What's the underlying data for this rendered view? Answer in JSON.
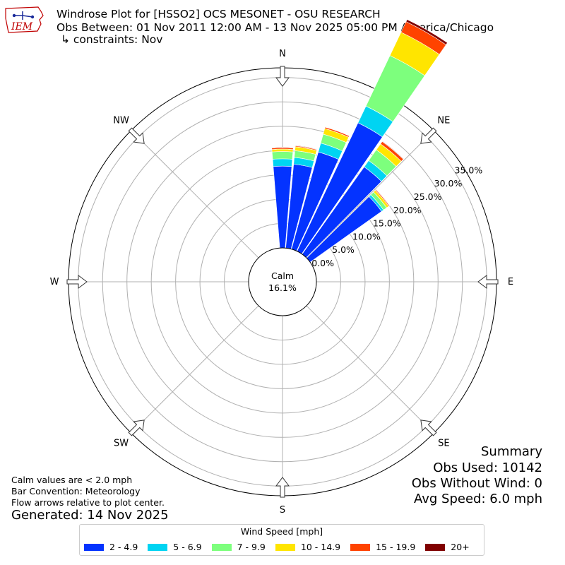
{
  "logo": {
    "text": "IEM",
    "icon": "iowa-state-outline-logo"
  },
  "header": {
    "title": "Windrose Plot for [HSSO2] OCS MESONET - OSU RESEARCH",
    "subtitle": "Obs Between: 01 Nov 2011 12:00 AM - 13 Nov 2025 05:00 PM America/Chicago",
    "constraints": "↳ constraints: Nov"
  },
  "calm": {
    "label": "Calm",
    "value": "16.1%"
  },
  "summary": {
    "title": "Summary",
    "obs_used": "Obs Used: 10142",
    "obs_without_wind": "Obs Without Wind: 0",
    "avg_speed": "Avg Speed: 6.0 mph"
  },
  "notes": {
    "calm_note": "Calm values are < 2.0 mph",
    "bar_convention": "Bar Convention: Meteorology",
    "flow_note": "Flow arrows relative to plot center."
  },
  "generated": "Generated: 14 Nov 2025",
  "legend": {
    "title": "Wind Speed [mph]",
    "items": [
      {
        "label": "2 - 4.9",
        "color": "#0433ff"
      },
      {
        "label": "5 - 6.9",
        "color": "#00d4f2"
      },
      {
        "label": "7 - 9.9",
        "color": "#7dff7d"
      },
      {
        "label": "10 - 14.9",
        "color": "#ffe500"
      },
      {
        "label": "15 - 19.9",
        "color": "#ff4300"
      },
      {
        "label": "20+",
        "color": "#800000"
      }
    ]
  },
  "chart_data": {
    "type": "windrose",
    "direction_labels": [
      "N",
      "NE",
      "E",
      "SE",
      "S",
      "SW",
      "W",
      "NW"
    ],
    "ring_labels": [
      "0.0%",
      "5.0%",
      "10.0%",
      "15.0%",
      "20.0%",
      "25.0%",
      "30.0%",
      "35.0%"
    ],
    "r_max": 37,
    "calm_percent": 16.1,
    "grid": true,
    "sector_width_deg": 10,
    "series": [
      {
        "label": "2 - 4.9",
        "color": "#0433ff"
      },
      {
        "label": "5 - 6.9",
        "color": "#00d4f2"
      },
      {
        "label": "7 - 9.9",
        "color": "#7dff7d"
      },
      {
        "label": "10 - 14.9",
        "color": "#ffe500"
      },
      {
        "label": "15 - 19.9",
        "color": "#ff4300"
      },
      {
        "label": "20+",
        "color": "#800000"
      }
    ],
    "bars": [
      {
        "direction_deg": 0,
        "values": [
          16.8,
          18.3,
          19.8,
          20.3,
          20.6,
          20.7
        ]
      },
      {
        "direction_deg": 10,
        "values": [
          17.3,
          18.7,
          20.1,
          20.9,
          21.1,
          21.2
        ]
      },
      {
        "direction_deg": 20,
        "values": [
          20.7,
          22.6,
          24.5,
          25.7,
          26.0,
          26.1
        ]
      },
      {
        "direction_deg": 30,
        "values": [
          29.2,
          33.0,
          44.5,
          49.8,
          52.2,
          52.7
        ]
      },
      {
        "direction_deg": 40,
        "values": [
          22.0,
          23.6,
          26.3,
          27.8,
          28.4,
          28.5
        ]
      },
      {
        "direction_deg": 50,
        "values": [
          18.0,
          18.5,
          19.3,
          19.8,
          20.0,
          20.1
        ]
      }
    ]
  }
}
